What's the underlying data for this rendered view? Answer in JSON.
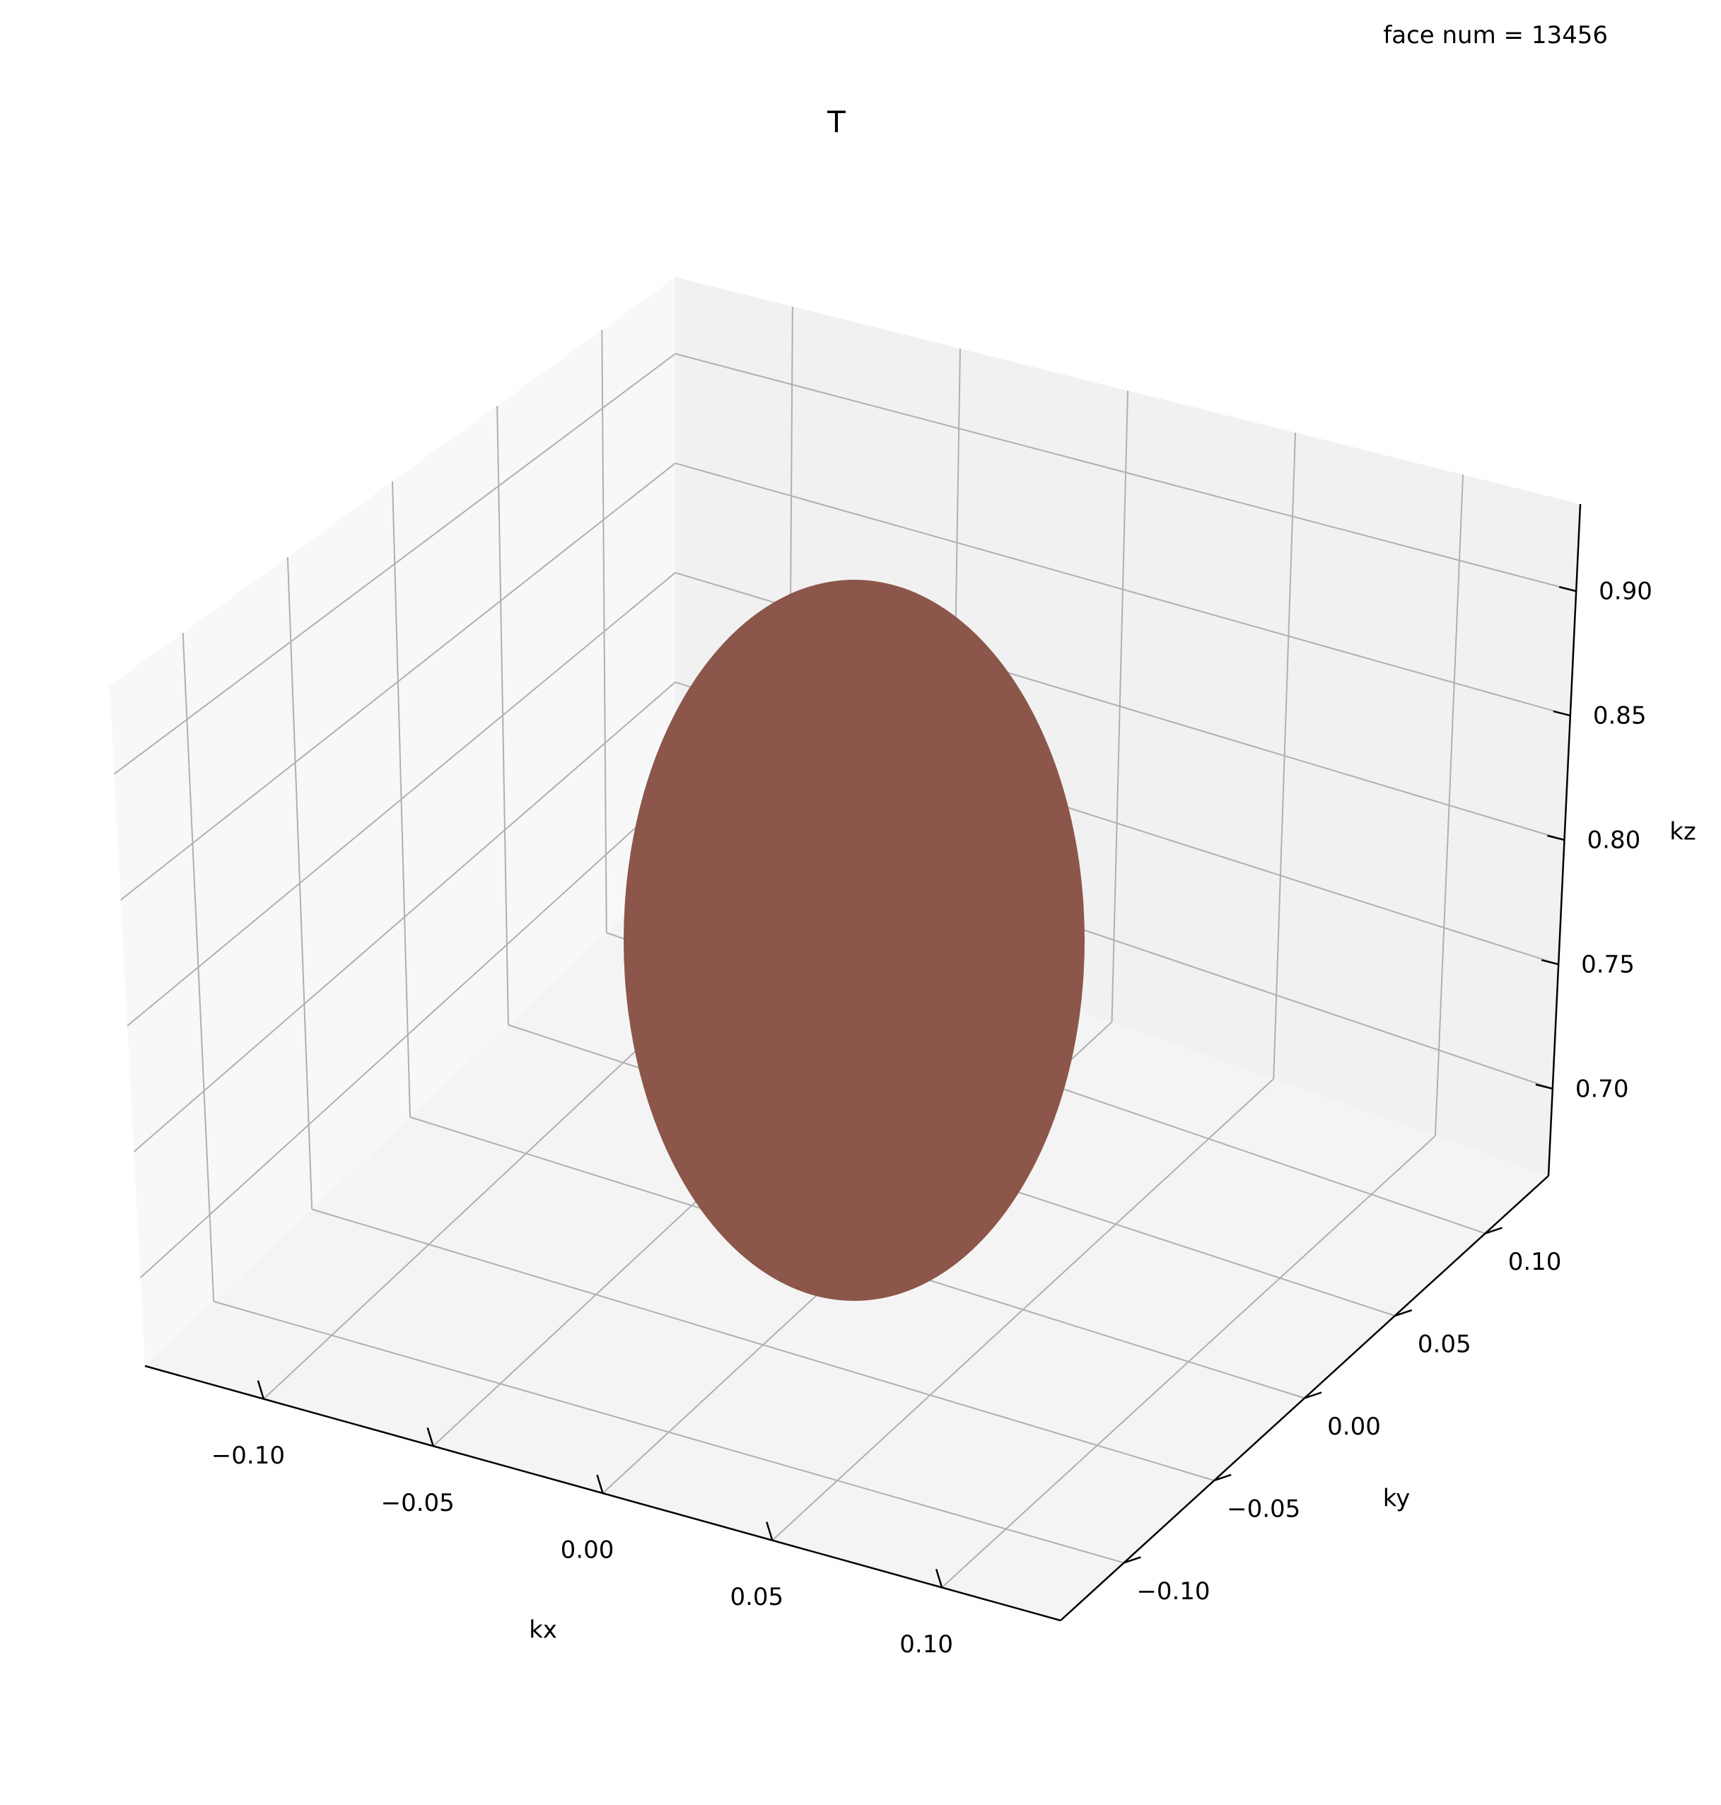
{
  "annotation": "face num = 13456",
  "chart_data": {
    "type": "3d-surface",
    "title": "T",
    "annotation": "face num = 13456",
    "xlabel": "kx",
    "ylabel": "ky",
    "zlabel": "kz",
    "xlim": [
      -0.135,
      0.135
    ],
    "ylim": [
      -0.135,
      0.135
    ],
    "zlim": [
      0.665,
      0.935
    ],
    "x_ticks": [
      "−0.10",
      "−0.05",
      "0.00",
      "0.05",
      "0.10"
    ],
    "y_ticks": [
      "−0.10",
      "−0.05",
      "0.00",
      "0.05",
      "0.10"
    ],
    "z_ticks": [
      "0.70",
      "0.75",
      "0.80",
      "0.85",
      "0.90"
    ],
    "grid": true,
    "surface": {
      "shape": "ellipsoid",
      "center": [
        0.0,
        0.0,
        0.8
      ],
      "semi_axes": [
        0.105,
        0.105,
        0.13
      ],
      "faces": 13456,
      "color": "#8c564b"
    },
    "colors": {
      "pane_left": "#f8f8f8",
      "pane_back": "#f1f1f1",
      "pane_floor": "#f4f4f4",
      "grid": "#b0b0b0",
      "axis": "#000000"
    }
  }
}
